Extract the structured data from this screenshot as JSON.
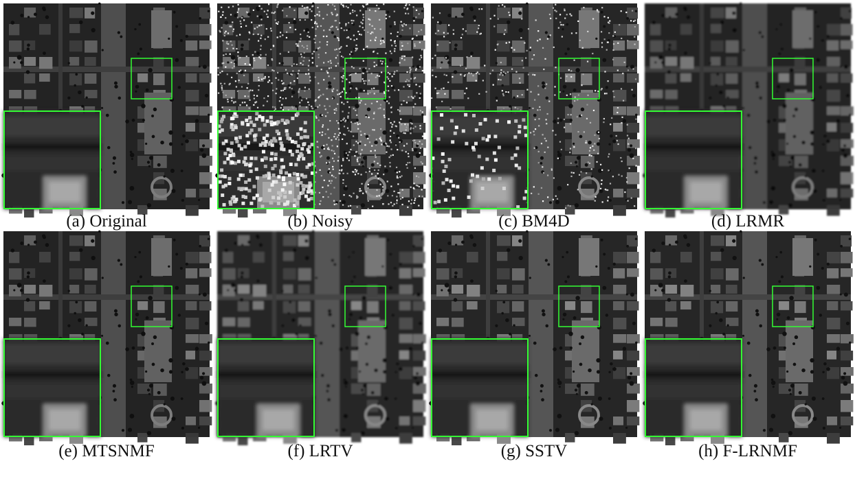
{
  "panels": [
    {
      "caption": "(a) Original"
    },
    {
      "caption": "(b) Noisy"
    },
    {
      "caption": "(c) BM4D"
    },
    {
      "caption": "(d) LRMR"
    },
    {
      "caption": "(e) MTSNMF"
    },
    {
      "caption": "(f) LRTV"
    },
    {
      "caption": "(g) SSTV"
    },
    {
      "caption": "(h) F-LRNMF"
    }
  ]
}
